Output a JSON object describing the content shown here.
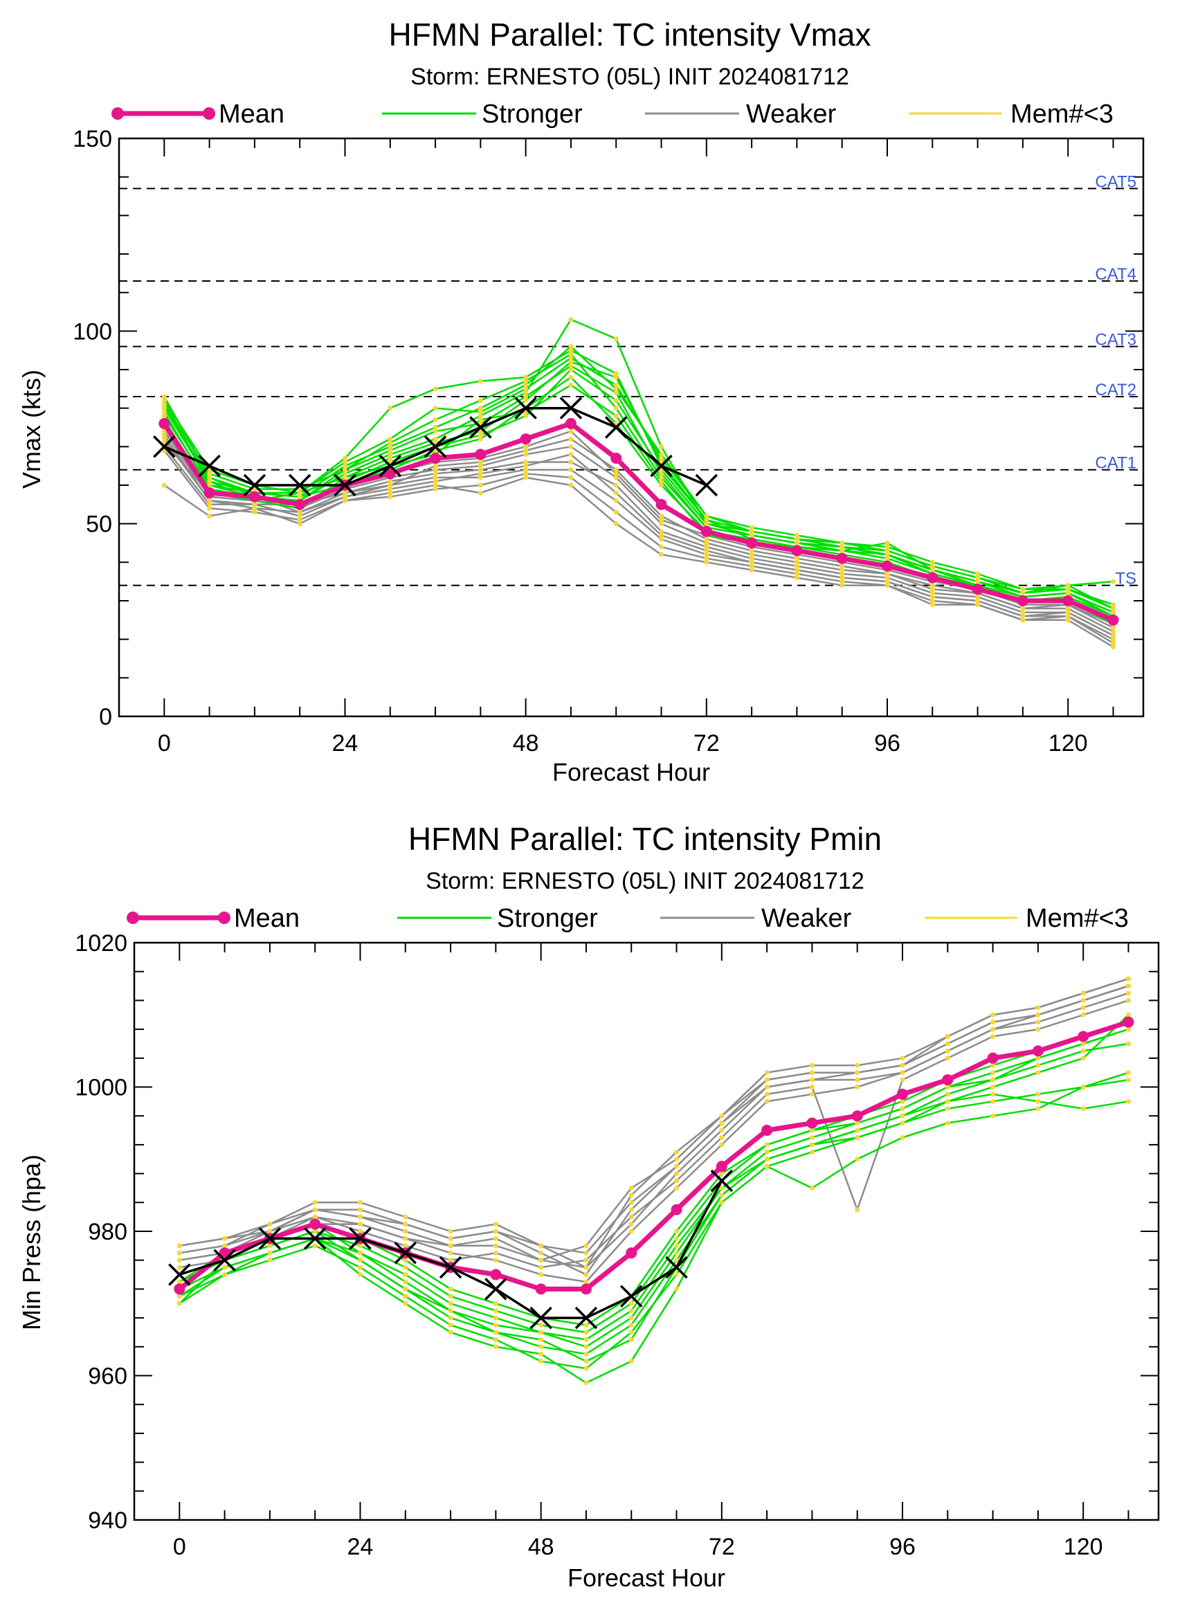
{
  "chart_data": [
    {
      "type": "line",
      "title": "HFMN Parallel: TC intensity Vmax",
      "subtitle": "Storm: ERNESTO (05L) INIT 2024081712",
      "xlabel": "Forecast Hour",
      "ylabel": "Vmax (kts)",
      "xlim": [
        -6,
        130
      ],
      "ylim": [
        0,
        150
      ],
      "xticks": [
        0,
        24,
        48,
        72,
        96,
        120
      ],
      "yticks": [
        0,
        50,
        100,
        150
      ],
      "legend": {
        "placement": "top",
        "entries": [
          {
            "label": "Mean",
            "color": "#e6158c"
          },
          {
            "label": "Stronger",
            "color": "#00dd00"
          },
          {
            "label": "Weaker",
            "color": "#8c8c8c"
          },
          {
            "label": "Mem#<3",
            "color": "#f4d83a"
          }
        ]
      },
      "thresholds": [
        {
          "label": "CAT5",
          "value": 137
        },
        {
          "label": "CAT4",
          "value": 113
        },
        {
          "label": "CAT3",
          "value": 96
        },
        {
          "label": "CAT2",
          "value": 83
        },
        {
          "label": "CAT1",
          "value": 64
        },
        {
          "label": "TS",
          "value": 34
        }
      ],
      "mean": {
        "name": "Mean",
        "color": "#e6158c",
        "x": [
          0,
          6,
          12,
          18,
          24,
          30,
          36,
          42,
          48,
          54,
          60,
          66,
          72,
          78,
          84,
          90,
          96,
          102,
          108,
          114,
          120,
          126
        ],
        "values": [
          76,
          58,
          57,
          55,
          60,
          63,
          67,
          68,
          72,
          76,
          67,
          55,
          48,
          45,
          43,
          41,
          39,
          36,
          33,
          30,
          30,
          25
        ]
      },
      "observed": {
        "color": "#000000",
        "x": [
          0,
          6,
          12,
          18,
          24,
          30,
          36,
          42,
          48,
          54,
          60,
          66,
          72
        ],
        "values": [
          70,
          65,
          60,
          60,
          60,
          65,
          70,
          75,
          80,
          80,
          75,
          65,
          60
        ]
      },
      "stronger": {
        "color": "#00dd00",
        "x": [
          0,
          6,
          12,
          18,
          24,
          30,
          36,
          42,
          48,
          54,
          60,
          66,
          72,
          78,
          84,
          90,
          96,
          102,
          108,
          114,
          120,
          126
        ],
        "members": [
          [
            83,
            62,
            58,
            57,
            65,
            70,
            75,
            80,
            86,
            96,
            85,
            68,
            52,
            48,
            46,
            44,
            42,
            38,
            35,
            31,
            32,
            27
          ],
          [
            82,
            60,
            57,
            56,
            63,
            68,
            72,
            78,
            84,
            103,
            98,
            70,
            50,
            47,
            45,
            43,
            41,
            37,
            34,
            30,
            31,
            26
          ],
          [
            80,
            61,
            56,
            58,
            62,
            67,
            71,
            74,
            82,
            92,
            88,
            66,
            51,
            46,
            44,
            42,
            40,
            36,
            34,
            30,
            30,
            24
          ],
          [
            81,
            63,
            59,
            59,
            64,
            71,
            77,
            82,
            87,
            94,
            80,
            62,
            49,
            47,
            45,
            44,
            43,
            39,
            36,
            33,
            34,
            28
          ],
          [
            79,
            59,
            57,
            55,
            61,
            66,
            70,
            73,
            78,
            90,
            82,
            64,
            50,
            48,
            46,
            45,
            44,
            40,
            37,
            33,
            33,
            28
          ],
          [
            78,
            60,
            58,
            57,
            60,
            64,
            69,
            72,
            80,
            88,
            76,
            60,
            48,
            46,
            44,
            43,
            42,
            38,
            35,
            32,
            33,
            29
          ],
          [
            82,
            64,
            60,
            58,
            66,
            72,
            80,
            79,
            85,
            93,
            86,
            67,
            52,
            49,
            47,
            45,
            43,
            39,
            36,
            32,
            34,
            35
          ],
          [
            80,
            62,
            57,
            56,
            64,
            69,
            74,
            76,
            83,
            91,
            84,
            63,
            49,
            47,
            45,
            44,
            42,
            38,
            35,
            31,
            32,
            27
          ],
          [
            77,
            58,
            56,
            54,
            62,
            65,
            68,
            77,
            79,
            86,
            78,
            61,
            47,
            45,
            44,
            43,
            45,
            38,
            34,
            30,
            31,
            26
          ],
          [
            81,
            61,
            58,
            58,
            67,
            80,
            85,
            87,
            88,
            95,
            89,
            65,
            51,
            48,
            46,
            44,
            42,
            37,
            34,
            31,
            32,
            26
          ]
        ]
      },
      "weaker": {
        "color": "#8c8c8c",
        "x": [
          0,
          6,
          12,
          18,
          24,
          30,
          36,
          42,
          48,
          54,
          60,
          66,
          72,
          78,
          84,
          90,
          96,
          102,
          108,
          114,
          120,
          126
        ],
        "members": [
          [
            60,
            52,
            54,
            50,
            56,
            58,
            60,
            58,
            62,
            60,
            50,
            42,
            40,
            38,
            36,
            34,
            34,
            29,
            29,
            25,
            25,
            18
          ],
          [
            70,
            55,
            55,
            52,
            57,
            60,
            62,
            62,
            64,
            64,
            56,
            46,
            42,
            40,
            38,
            36,
            35,
            31,
            30,
            26,
            26,
            20
          ],
          [
            72,
            56,
            54,
            53,
            58,
            61,
            63,
            64,
            66,
            66,
            60,
            48,
            44,
            41,
            39,
            37,
            36,
            32,
            31,
            27,
            27,
            21
          ],
          [
            74,
            57,
            56,
            54,
            59,
            62,
            64,
            65,
            68,
            70,
            62,
            50,
            45,
            42,
            40,
            38,
            37,
            33,
            32,
            28,
            28,
            22
          ],
          [
            73,
            56,
            55,
            55,
            58,
            60,
            65,
            66,
            69,
            72,
            64,
            52,
            46,
            43,
            41,
            39,
            37,
            34,
            32,
            28,
            29,
            23
          ],
          [
            71,
            58,
            57,
            53,
            57,
            59,
            61,
            63,
            65,
            68,
            58,
            47,
            43,
            40,
            38,
            36,
            35,
            31,
            30,
            26,
            27,
            21
          ],
          [
            75,
            57,
            56,
            54,
            60,
            63,
            66,
            67,
            70,
            74,
            63,
            51,
            47,
            44,
            42,
            40,
            38,
            35,
            33,
            29,
            29,
            24
          ],
          [
            69,
            54,
            53,
            51,
            56,
            57,
            59,
            60,
            63,
            62,
            53,
            44,
            41,
            39,
            37,
            35,
            34,
            30,
            29,
            25,
            26,
            19
          ]
        ]
      }
    },
    {
      "type": "line",
      "title": "HFMN Parallel: TC intensity Pmin",
      "subtitle": "Storm: ERNESTO (05L) INIT 2024081712",
      "xlabel": "Forecast Hour",
      "ylabel": "Min Press (hpa)",
      "xlim": [
        -6,
        130
      ],
      "ylim": [
        940,
        1020
      ],
      "xticks": [
        0,
        24,
        48,
        72,
        96,
        120
      ],
      "yticks": [
        940,
        960,
        980,
        1000,
        1020
      ],
      "legend": {
        "placement": "top",
        "entries": [
          {
            "label": "Mean",
            "color": "#e6158c"
          },
          {
            "label": "Stronger",
            "color": "#00dd00"
          },
          {
            "label": "Weaker",
            "color": "#8c8c8c"
          },
          {
            "label": "Mem#<3",
            "color": "#f4d83a"
          }
        ]
      },
      "mean": {
        "name": "Mean",
        "color": "#e6158c",
        "x": [
          0,
          6,
          12,
          18,
          24,
          30,
          36,
          42,
          48,
          54,
          60,
          66,
          72,
          78,
          84,
          90,
          96,
          102,
          108,
          114,
          120,
          126
        ],
        "values": [
          972,
          977,
          979,
          981,
          979,
          977,
          975,
          974,
          972,
          972,
          977,
          983,
          989,
          994,
          995,
          996,
          999,
          1001,
          1004,
          1005,
          1007,
          1009
        ]
      },
      "observed": {
        "color": "#000000",
        "x": [
          0,
          6,
          12,
          18,
          24,
          30,
          36,
          42,
          48,
          54,
          60,
          66,
          72
        ],
        "values": [
          974,
          976,
          979,
          979,
          979,
          977,
          975,
          972,
          968,
          968,
          971,
          975,
          987
        ]
      },
      "stronger": {
        "color": "#00dd00",
        "x": [
          0,
          6,
          12,
          18,
          24,
          30,
          36,
          42,
          48,
          54,
          60,
          66,
          72,
          78,
          84,
          90,
          96,
          102,
          108,
          114,
          120,
          126
        ],
        "members": [
          [
            970,
            976,
            978,
            980,
            976,
            972,
            968,
            966,
            965,
            962,
            965,
            975,
            985,
            990,
            992,
            994,
            996,
            998,
            999,
            998,
            997,
            998
          ],
          [
            971,
            975,
            977,
            979,
            974,
            970,
            966,
            964,
            963,
            959,
            962,
            972,
            984,
            989,
            991,
            993,
            995,
            997,
            998,
            999,
            1000,
            1001
          ],
          [
            972,
            977,
            979,
            981,
            977,
            973,
            969,
            967,
            966,
            964,
            968,
            977,
            986,
            991,
            993,
            995,
            997,
            1000,
            1001,
            1003,
            1005,
            1006
          ],
          [
            973,
            976,
            978,
            980,
            978,
            975,
            971,
            969,
            967,
            966,
            970,
            979,
            987,
            992,
            994,
            996,
            998,
            1001,
            1003,
            1005,
            1007,
            1009
          ],
          [
            971,
            974,
            976,
            978,
            975,
            971,
            967,
            965,
            962,
            961,
            966,
            974,
            984,
            989,
            986,
            990,
            993,
            995,
            996,
            997,
            1000,
            1002
          ],
          [
            972,
            975,
            977,
            979,
            977,
            974,
            970,
            968,
            966,
            965,
            969,
            978,
            986,
            990,
            992,
            994,
            996,
            999,
            1001,
            1004,
            1006,
            1008
          ],
          [
            970,
            974,
            977,
            979,
            976,
            972,
            969,
            966,
            964,
            963,
            967,
            976,
            985,
            990,
            992,
            993,
            995,
            998,
            1000,
            1002,
            1004,
            1010
          ],
          [
            973,
            977,
            979,
            981,
            979,
            976,
            972,
            970,
            968,
            967,
            971,
            980,
            988,
            992,
            994,
            995,
            997,
            1000,
            1002,
            1004,
            1006,
            1008
          ]
        ]
      },
      "weaker": {
        "color": "#8c8c8c",
        "x": [
          0,
          6,
          12,
          18,
          24,
          30,
          36,
          42,
          48,
          54,
          60,
          66,
          72,
          78,
          84,
          90,
          96,
          102,
          108,
          114,
          120,
          126
        ],
        "members": [
          [
            978,
            979,
            981,
            984,
            984,
            982,
            980,
            981,
            978,
            975,
            985,
            991,
            996,
            1002,
            1003,
            1003,
            1004,
            1007,
            1010,
            1011,
            1013,
            1015
          ],
          [
            977,
            978,
            980,
            983,
            983,
            981,
            979,
            980,
            977,
            974,
            983,
            989,
            995,
            1001,
            1002,
            1002,
            1003,
            1006,
            1009,
            1010,
            1012,
            1014
          ],
          [
            976,
            977,
            980,
            982,
            981,
            979,
            978,
            979,
            976,
            975,
            981,
            988,
            994,
            1000,
            1001,
            1001,
            1002,
            1005,
            1008,
            1009,
            1011,
            1013
          ],
          [
            975,
            976,
            979,
            982,
            980,
            978,
            976,
            977,
            975,
            976,
            982,
            987,
            993,
            999,
            1000,
            983,
            1001,
            1004,
            1007,
            1008,
            1010,
            1012
          ],
          [
            977,
            978,
            981,
            983,
            982,
            980,
            978,
            978,
            976,
            978,
            986,
            990,
            996,
            1001,
            1002,
            1002,
            1003,
            1006,
            1009,
            1010,
            1012,
            1014
          ],
          [
            976,
            977,
            979,
            981,
            981,
            979,
            977,
            976,
            974,
            973,
            980,
            986,
            992,
            998,
            999,
            1000,
            1002,
            1005,
            1008,
            1010,
            1012,
            1014
          ],
          [
            978,
            979,
            980,
            983,
            982,
            981,
            979,
            980,
            978,
            977,
            984,
            989,
            995,
            1000,
            1001,
            1002,
            1003,
            1007,
            1010,
            1011,
            1013,
            1015
          ]
        ]
      }
    }
  ]
}
